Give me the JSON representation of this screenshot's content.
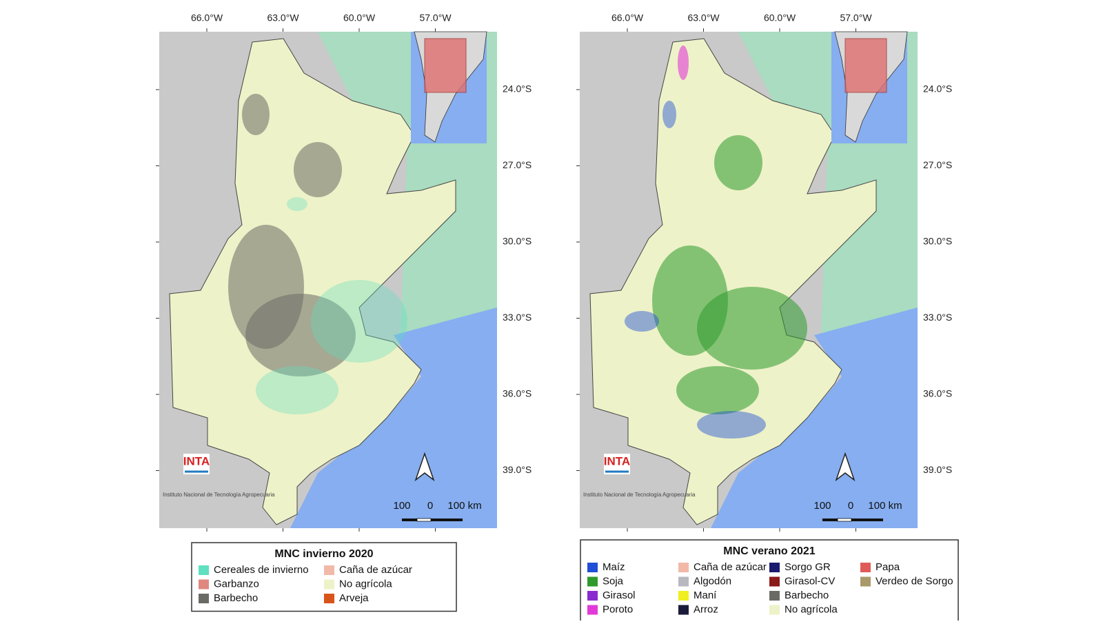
{
  "maps": [
    {
      "lon_labels": [
        "66.0°W",
        "63.0°W",
        "60.0°W",
        "57.0°W"
      ],
      "lat_labels": [
        "24.0°S",
        "27.0°S",
        "30.0°S",
        "33.0°S",
        "36.0°S",
        "39.0°S"
      ],
      "logo": "INTA",
      "logo_caption": "Instituto Nacional de Tecnología Agropecuaria",
      "scale_labels": [
        "100",
        "0",
        "100 km"
      ],
      "legend": {
        "title": "MNC invierno 2020",
        "columns": [
          [
            {
              "label": "Cereales de invierno",
              "color": "#5fe0c0"
            },
            {
              "label": "Garbanzo",
              "color": "#e0877f"
            },
            {
              "label": "Barbecho",
              "color": "#6b6b66"
            }
          ],
          [
            {
              "label": "Caña de azúcar",
              "color": "#f2b9a8"
            },
            {
              "label": "No agrícola",
              "color": "#eef2c8"
            },
            {
              "label": "Arveja",
              "color": "#d9541a"
            }
          ]
        ]
      }
    },
    {
      "lon_labels": [
        "66.0°W",
        "63.0°W",
        "60.0°W",
        "57.0°W"
      ],
      "lat_labels": [
        "24.0°S",
        "27.0°S",
        "30.0°S",
        "33.0°S",
        "36.0°S",
        "39.0°S"
      ],
      "logo": "INTA",
      "logo_caption": "Instituto Nacional de Tecnología Agropecuaria",
      "scale_labels": [
        "100",
        "0",
        "100 km"
      ],
      "legend": {
        "title": "MNC verano 2021",
        "columns": [
          [
            {
              "label": "Maíz",
              "color": "#1f4fd6"
            },
            {
              "label": "Soja",
              "color": "#2e9a2e"
            },
            {
              "label": "Girasol",
              "color": "#8a2bd0"
            },
            {
              "label": "Poroto",
              "color": "#e23ad8"
            }
          ],
          [
            {
              "label": "Caña de azúcar",
              "color": "#f2b9a8"
            },
            {
              "label": "Algodón",
              "color": "#b8b8c0"
            },
            {
              "label": "Maní",
              "color": "#f0f020"
            },
            {
              "label": "Arroz",
              "color": "#1a1a3a"
            }
          ],
          [
            {
              "label": "Sorgo GR",
              "color": "#1a1a6e"
            },
            {
              "label": "Girasol-CV",
              "color": "#8b1a1a"
            },
            {
              "label": "Barbecho",
              "color": "#6b6b66"
            },
            {
              "label": "No agrícola",
              "color": "#eef2c8"
            }
          ],
          [
            {
              "label": "Papa",
              "color": "#e05a5a"
            },
            {
              "label": "Verdeo de Sorgo",
              "color": "#a89a6a"
            }
          ]
        ]
      }
    }
  ]
}
